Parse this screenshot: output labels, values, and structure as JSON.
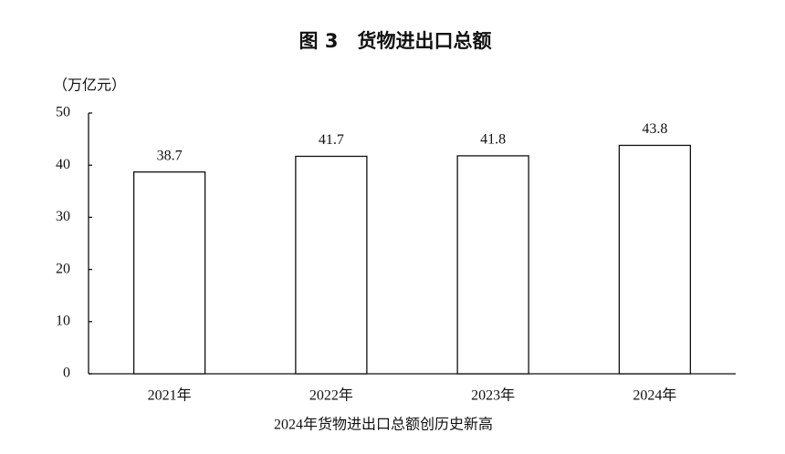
{
  "chart_data": {
    "type": "bar",
    "title": "图 3　货物进出口总额",
    "unit": "（万亿元）",
    "categories": [
      "2021年",
      "2022年",
      "2023年",
      "2024年"
    ],
    "values": [
      38.7,
      41.7,
      41.8,
      43.8
    ],
    "color": "#ffffff",
    "ylim": [
      0,
      50
    ],
    "yticks": [
      0,
      10,
      20,
      30,
      40,
      50
    ],
    "grid": false,
    "caption": "2024年货物进出口总额创历史新高"
  }
}
